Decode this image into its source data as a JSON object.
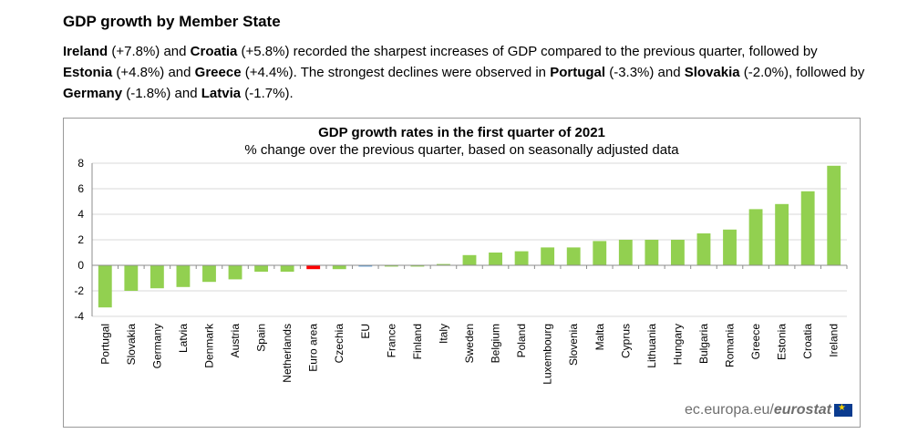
{
  "heading": "GDP growth by Member State",
  "paragraph": [
    {
      "b": "Ireland"
    },
    {
      "t": " (+7.8%) and "
    },
    {
      "b": "Croatia"
    },
    {
      "t": " (+5.8%) recorded the sharpest increases of GDP compared to the previous quarter, followed by "
    },
    {
      "b": "Estonia"
    },
    {
      "t": " (+4.8%) and "
    },
    {
      "b": "Greece"
    },
    {
      "t": " (+4.4%). The strongest declines were observed in "
    },
    {
      "b": "Portugal"
    },
    {
      "t": " (-3.3%) and "
    },
    {
      "b": "Slovakia"
    },
    {
      "t": " (-2.0%), followed by "
    },
    {
      "b": "Germany"
    },
    {
      "t": " (-1.8%) and "
    },
    {
      "b": "Latvia"
    },
    {
      "t": " (-1.7%)."
    }
  ],
  "source": {
    "prefix": "ec.europa.eu/",
    "brand": "eurostat"
  },
  "colors": {
    "default": "#92d050",
    "euro_area": "#ff0000",
    "eu": "#5b9bd5"
  },
  "chart_data": {
    "type": "bar",
    "title": "GDP growth rates in the first quarter of 2021",
    "subtitle": "% change over the previous quarter, based on seasonally adjusted data",
    "ylim": [
      -4,
      8
    ],
    "yticks": [
      -4,
      -2,
      0,
      2,
      4,
      6,
      8
    ],
    "grid": true,
    "categories": [
      "Portugal",
      "Slovakia",
      "Germany",
      "Latvia",
      "Denmark",
      "Austria",
      "Spain",
      "Netherlands",
      "Euro area",
      "Czechia",
      "EU",
      "France",
      "Finland",
      "Italy",
      "Sweden",
      "Belgium",
      "Poland",
      "Luxembourg",
      "Slovenia",
      "Malta",
      "Cyprus",
      "Lithuania",
      "Hungary",
      "Bulgaria",
      "Romania",
      "Greece",
      "Estonia",
      "Croatia",
      "Ireland"
    ],
    "values": [
      -3.3,
      -2.0,
      -1.8,
      -1.7,
      -1.3,
      -1.1,
      -0.5,
      -0.5,
      -0.3,
      -0.3,
      -0.1,
      -0.1,
      -0.1,
      0.1,
      0.8,
      1.0,
      1.1,
      1.4,
      1.4,
      1.9,
      2.0,
      2.0,
      2.0,
      2.5,
      2.8,
      4.4,
      4.8,
      5.8,
      7.8
    ]
  }
}
